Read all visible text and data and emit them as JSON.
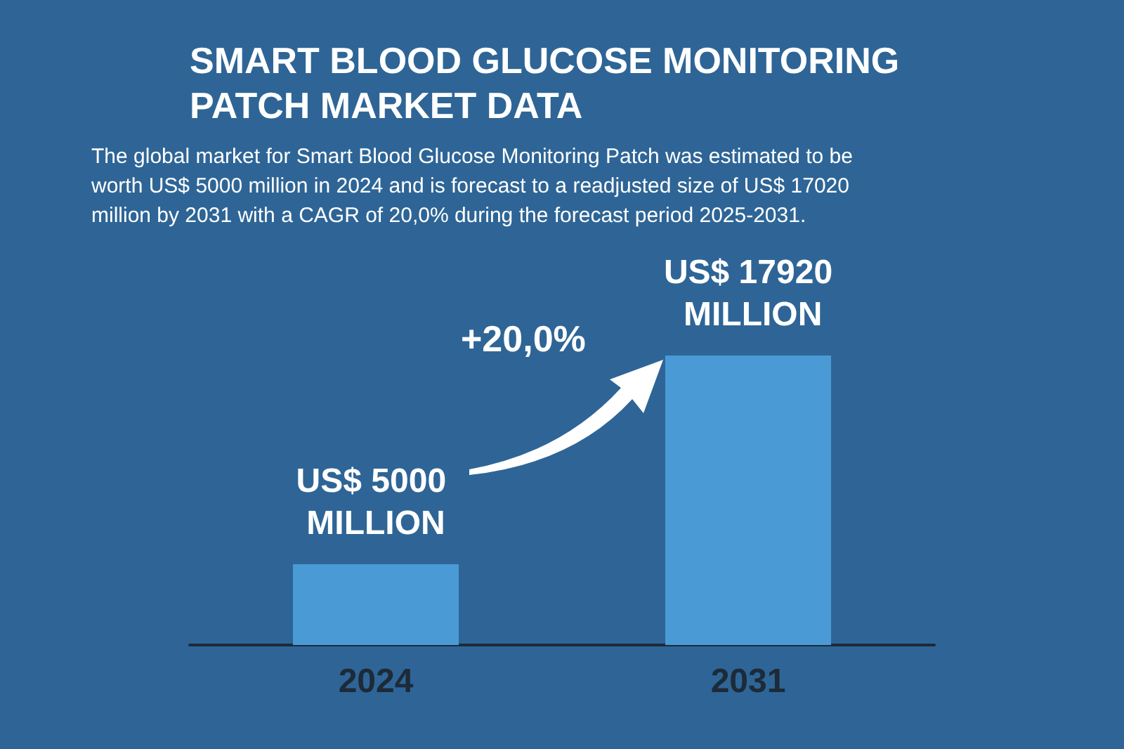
{
  "chart_data": {
    "type": "bar",
    "title": "SMART BLOOD GLUCOSE MONITORING PATCH MARKET DATA",
    "subtitle": "The global market for Smart Blood Glucose Monitoring Patch was estimated to be worth US$ 5000 million in 2024 and is forecast to a readjusted size of US$ 17020 million by 2031 with a CAGR of 20,0% during the forecast period 2025-2031.",
    "categories": [
      "2024",
      "2031"
    ],
    "values": [
      5000,
      17920
    ],
    "value_labels": [
      "US$ 5000 MILLION",
      "US$ 17920 MILLION"
    ],
    "color": "#4a9ad6",
    "annotations": [
      "+20,0%"
    ]
  }
}
